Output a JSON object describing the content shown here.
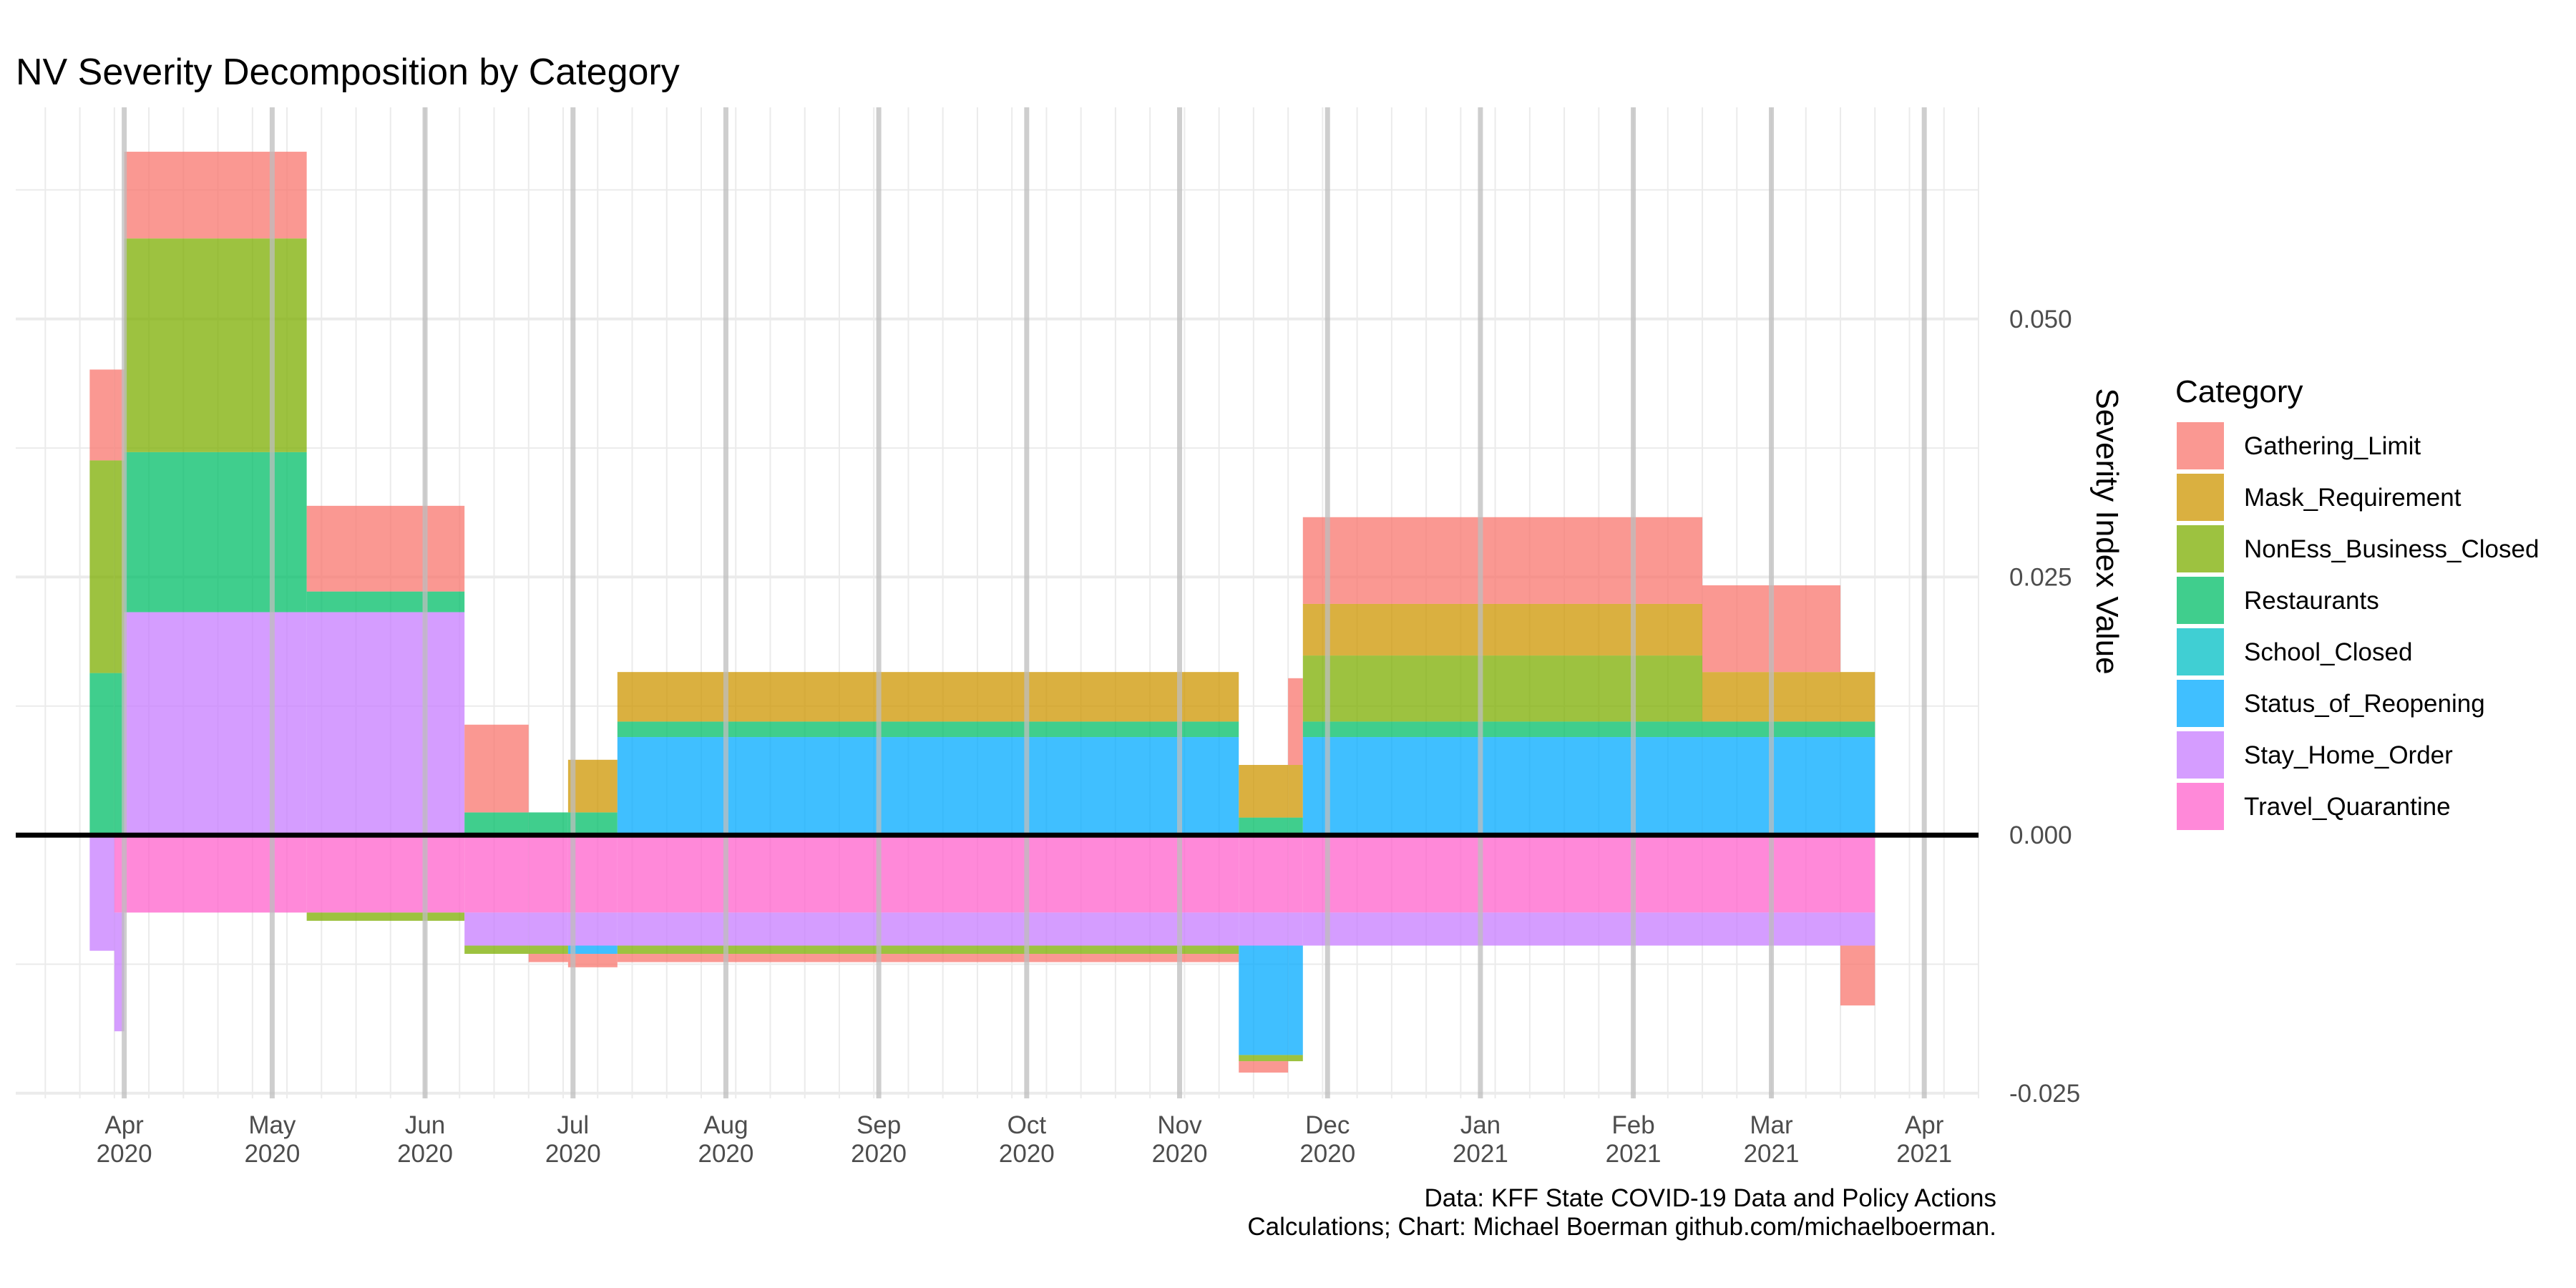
{
  "chart_data": {
    "type": "bar",
    "subtype": "stacked-area-steps",
    "title": "NV Severity Decomposition by Category",
    "xlabel": "",
    "ylabel": "Severity Index Value",
    "ylim": [
      -0.0255,
      0.0705
    ],
    "xlim": [
      "2020-03-10",
      "2021-04-12"
    ],
    "y_ticks": [
      {
        "value": -0.025,
        "label": "-0.025"
      },
      {
        "value": 0.0,
        "label": "0.000"
      },
      {
        "value": 0.025,
        "label": "0.025"
      },
      {
        "value": 0.05,
        "label": "0.050"
      }
    ],
    "x_ticks": [
      {
        "date": "2020-04-01",
        "label": [
          "Apr",
          "2020"
        ]
      },
      {
        "date": "2020-05-01",
        "label": [
          "May",
          "2020"
        ]
      },
      {
        "date": "2020-06-01",
        "label": [
          "Jun",
          "2020"
        ]
      },
      {
        "date": "2020-07-01",
        "label": [
          "Jul",
          "2020"
        ]
      },
      {
        "date": "2020-08-01",
        "label": [
          "Aug",
          "2020"
        ]
      },
      {
        "date": "2020-09-01",
        "label": [
          "Sep",
          "2020"
        ]
      },
      {
        "date": "2020-10-01",
        "label": [
          "Oct",
          "2020"
        ]
      },
      {
        "date": "2020-11-01",
        "label": [
          "Nov",
          "2020"
        ]
      },
      {
        "date": "2020-12-01",
        "label": [
          "Dec",
          "2020"
        ]
      },
      {
        "date": "2021-01-01",
        "label": [
          "Jan",
          "2021"
        ]
      },
      {
        "date": "2021-02-01",
        "label": [
          "Feb",
          "2021"
        ]
      },
      {
        "date": "2021-03-01",
        "label": [
          "Mar",
          "2021"
        ]
      },
      {
        "date": "2021-04-01",
        "label": [
          "Apr",
          "2021"
        ]
      }
    ],
    "grid": true,
    "zero_line": true,
    "legend": {
      "title": "Category",
      "position": "right",
      "entries": [
        {
          "name": "Gathering_Limit",
          "color": "#F8766D"
        },
        {
          "name": "Mask_Requirement",
          "color": "#CD9600"
        },
        {
          "name": "NonEss_Business_Closed",
          "color": "#7CAE00"
        },
        {
          "name": "Restaurants",
          "color": "#00BE67"
        },
        {
          "name": "School_Closed",
          "color": "#00BFC4"
        },
        {
          "name": "Status_of_Reopening",
          "color": "#00A9FF"
        },
        {
          "name": "Stay_Home_Order",
          "color": "#C77CFF"
        },
        {
          "name": "Travel_Quarantine",
          "color": "#FF61CC"
        }
      ]
    },
    "segments": [
      {
        "start": "2020-03-25",
        "end": "2020-03-30",
        "values": {
          "Gathering_Limit": 0.0088,
          "NonEss_Business_Closed": 0.0206,
          "Restaurants": 0.0157,
          "Stay_Home_Order": -0.0112
        }
      },
      {
        "start": "2020-03-30",
        "end": "2020-04-01",
        "values": {
          "Gathering_Limit": 0.0088,
          "NonEss_Business_Closed": 0.0206,
          "Restaurants": 0.0157,
          "Travel_Quarantine": -0.0075,
          "Stay_Home_Order": -0.0115
        }
      },
      {
        "start": "2020-04-01",
        "end": "2020-05-08",
        "values": {
          "Stay_Home_Order": 0.0216,
          "Restaurants": 0.0155,
          "NonEss_Business_Closed": 0.0207,
          "Gathering_Limit": 0.0084,
          "Travel_Quarantine": -0.0075
        }
      },
      {
        "start": "2020-05-08",
        "end": "2020-06-09",
        "values": {
          "Stay_Home_Order": 0.0216,
          "Restaurants": 0.002,
          "Gathering_Limit": 0.0083,
          "Travel_Quarantine": -0.0075,
          "NonEss_Business_Closed": -0.0008
        }
      },
      {
        "start": "2020-06-09",
        "end": "2020-06-22",
        "values": {
          "Restaurants": 0.0022,
          "Gathering_Limit": 0.0085,
          "Travel_Quarantine": -0.0075,
          "Stay_Home_Order": -0.0032,
          "NonEss_Business_Closed": -0.0008
        }
      },
      {
        "start": "2020-06-22",
        "end": "2020-06-30",
        "values": {
          "Restaurants": 0.0022,
          "Travel_Quarantine": -0.0075,
          "Stay_Home_Order": -0.0032,
          "NonEss_Business_Closed": -0.0008,
          "Gathering_Limit": -0.0008
        }
      },
      {
        "start": "2020-06-30",
        "end": "2020-07-10",
        "values": {
          "Restaurants": 0.0022,
          "Mask_Requirement": 0.0051,
          "Travel_Quarantine": -0.0075,
          "Stay_Home_Order": -0.0032,
          "Status_of_Reopening": -0.0008,
          "Gathering_Limit": -0.0013
        }
      },
      {
        "start": "2020-07-10",
        "end": "2020-11-13",
        "values": {
          "Status_of_Reopening": 0.0095,
          "Restaurants": 0.0015,
          "Mask_Requirement": 0.0048,
          "Travel_Quarantine": -0.0075,
          "Stay_Home_Order": -0.0032,
          "NonEss_Business_Closed": -0.0008,
          "Gathering_Limit": -0.0008
        }
      },
      {
        "start": "2020-11-13",
        "end": "2020-11-23",
        "values": {
          "Restaurants": 0.0017,
          "Mask_Requirement": 0.0051,
          "Travel_Quarantine": -0.0075,
          "Stay_Home_Order": -0.0032,
          "Status_of_Reopening": -0.0106,
          "NonEss_Business_Closed": -0.0006,
          "Gathering_Limit": -0.0011
        }
      },
      {
        "start": "2020-11-23",
        "end": "2020-11-26",
        "values": {
          "Restaurants": 0.0017,
          "Mask_Requirement": 0.0051,
          "Gathering_Limit": 0.0084,
          "Travel_Quarantine": -0.0075,
          "Stay_Home_Order": -0.0032,
          "Status_of_Reopening": -0.0106,
          "NonEss_Business_Closed": -0.0006
        }
      },
      {
        "start": "2020-11-26",
        "end": "2021-02-15",
        "values": {
          "Status_of_Reopening": 0.0095,
          "Restaurants": 0.0015,
          "NonEss_Business_Closed": 0.0064,
          "Mask_Requirement": 0.005,
          "Gathering_Limit": 0.0084,
          "Travel_Quarantine": -0.0075,
          "Stay_Home_Order": -0.0032
        }
      },
      {
        "start": "2021-02-15",
        "end": "2021-03-15",
        "values": {
          "Status_of_Reopening": 0.0095,
          "Restaurants": 0.0015,
          "Mask_Requirement": 0.0048,
          "Gathering_Limit": 0.0084,
          "Travel_Quarantine": -0.0075,
          "Stay_Home_Order": -0.0032
        }
      },
      {
        "start": "2021-03-15",
        "end": "2021-03-22",
        "values": {
          "Status_of_Reopening": 0.0095,
          "Restaurants": 0.0015,
          "Mask_Requirement": 0.0048,
          "Travel_Quarantine": -0.0075,
          "Stay_Home_Order": -0.0032,
          "Gathering_Limit": -0.0058
        }
      }
    ],
    "caption": [
      "Data: KFF State COVID-19 Data and Policy Actions",
      "Calculations; Chart: Michael Boerman github.com/michaelboerman."
    ]
  }
}
